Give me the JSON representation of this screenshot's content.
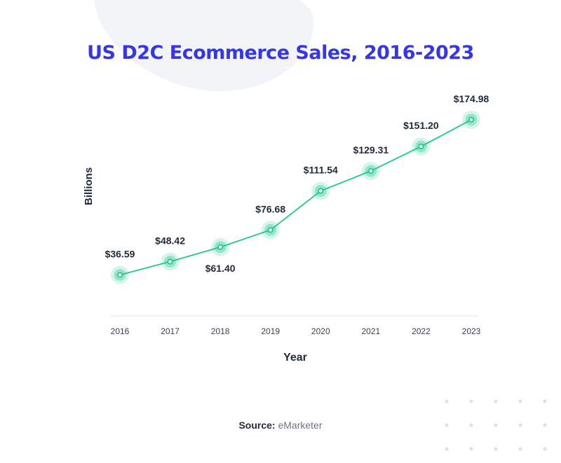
{
  "colors": {
    "title": "#3535ea",
    "line": "#1ec98b",
    "halo": "#1ec98b",
    "text": "#222a3e",
    "axis": "#e3e6ec",
    "blob": "#f3f4f8",
    "dots": "#dcdef4"
  },
  "source": {
    "label": "Source:",
    "value": "eMarketer"
  },
  "chart_data": {
    "type": "line",
    "title": "US D2C Ecommerce Sales, 2016-2023",
    "xlabel": "Year",
    "ylabel": "Billions",
    "x": [
      "2016",
      "2017",
      "2018",
      "2019",
      "2020",
      "2021",
      "2022",
      "2023"
    ],
    "series": [
      {
        "values": [
          36.59,
          48.42,
          61.4,
          76.68,
          111.54,
          129.31,
          151.2,
          174.98
        ],
        "labels": [
          "$36.59",
          "$48.42",
          "$61.40",
          "$76.68",
          "$111.54",
          "$129.31",
          "$151.20",
          "$174.98"
        ]
      }
    ],
    "ylim": [
      0,
      200
    ],
    "grid": false
  }
}
